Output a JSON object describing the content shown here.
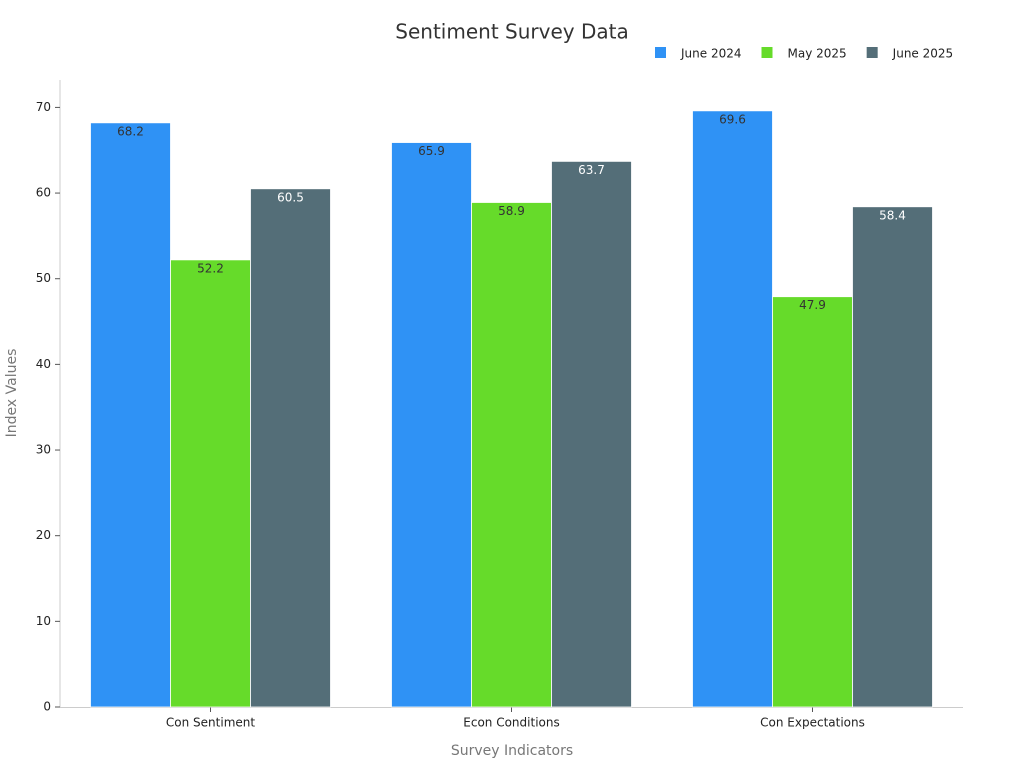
{
  "chart_data": {
    "type": "bar",
    "title": "Sentiment Survey Data",
    "x_label": "Survey Indicators",
    "y_label": "Index Values",
    "categories": [
      "Con Sentiment",
      "Econ Conditions",
      "Con Expectations"
    ],
    "series": [
      {
        "name": "June 2024",
        "color": "#2f92f5",
        "values": [
          68.2,
          65.9,
          69.6
        ]
      },
      {
        "name": "May 2025",
        "color": "#66db2a",
        "values": [
          52.2,
          58.9,
          47.9
        ]
      },
      {
        "name": "June 2025",
        "color": "#546e78",
        "values": [
          60.5,
          63.7,
          58.4
        ]
      }
    ],
    "ylim": [
      0,
      73.2
    ],
    "yticks": [
      0,
      10,
      20,
      30,
      40,
      50,
      60,
      70
    ],
    "grid": false,
    "legend": "top-right"
  }
}
